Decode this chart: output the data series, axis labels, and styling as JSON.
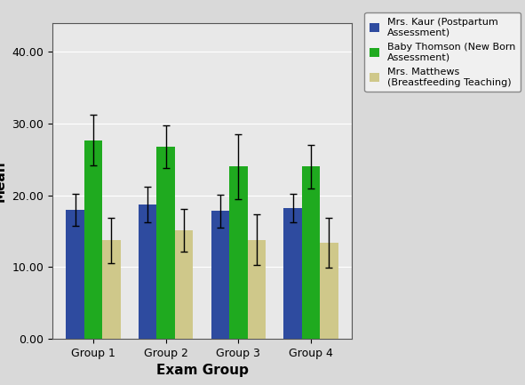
{
  "xlabel": "Exam Group",
  "ylabel": "Mean",
  "categories": [
    "Group 1",
    "Group 2",
    "Group 3",
    "Group 4"
  ],
  "series": [
    {
      "label": "Mrs. Kaur (Postpartum\nAssessment)",
      "color": "#2e4b9f",
      "values": [
        18.0,
        18.7,
        17.8,
        18.2
      ],
      "errors": [
        2.2,
        2.5,
        2.3,
        2.0
      ]
    },
    {
      "label": "Baby Thomson (New Born\nAssessment)",
      "color": "#1faa1f",
      "values": [
        27.7,
        26.8,
        24.0,
        24.0
      ],
      "errors": [
        3.5,
        3.0,
        4.5,
        3.0
      ]
    },
    {
      "label": "Mrs. Matthews\n(Breastfeeding Teaching)",
      "color": "#cfc88a",
      "values": [
        13.7,
        15.1,
        13.8,
        13.4
      ],
      "errors": [
        3.2,
        3.0,
        3.5,
        3.5
      ]
    }
  ],
  "ylim": [
    0,
    44
  ],
  "yticks": [
    0.0,
    10.0,
    20.0,
    30.0,
    40.0
  ],
  "bar_width": 0.25,
  "background_color": "#d9d9d9",
  "plot_bg_color": "#e8e8e8",
  "figsize": [
    5.91,
    4.33
  ],
  "dpi": 100
}
